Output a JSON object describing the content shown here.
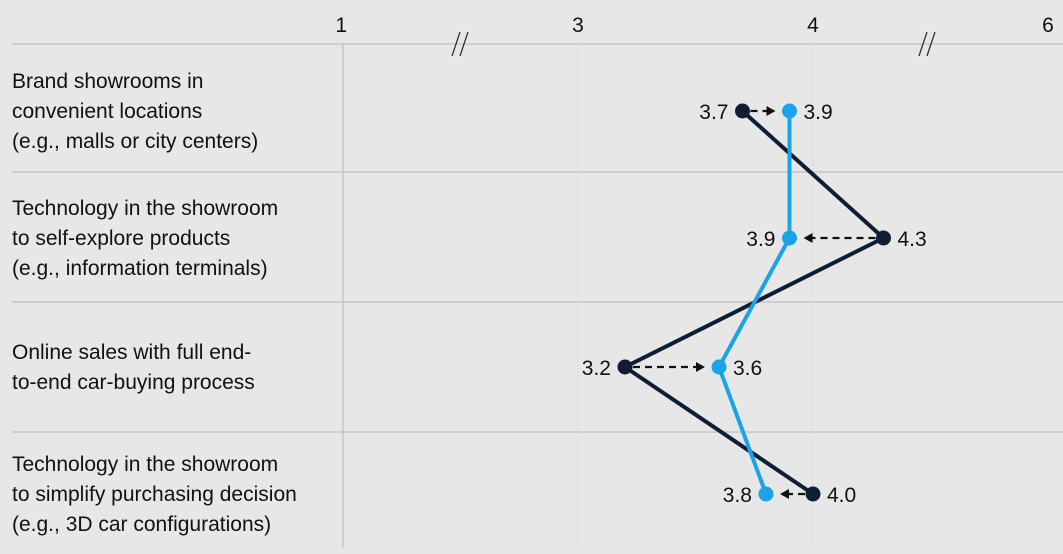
{
  "chart_data": {
    "type": "dot-arrow",
    "x_ticks": [
      "1",
      "3",
      "4",
      "6"
    ],
    "axis_breaks": [
      "between 1 and 3",
      "between 4 and 6"
    ],
    "grid": true,
    "categories": [
      {
        "lines": [
          "Brand showrooms in",
          "convenient locations",
          "(e.g., malls or city centers)"
        ]
      },
      {
        "lines": [
          "Technology in the showroom",
          "to self-explore products",
          "(e.g., information terminals)"
        ]
      },
      {
        "lines": [
          "Online sales with full end-",
          "to-end car-buying process"
        ]
      },
      {
        "lines": [
          "Technology in the showroom",
          "to simplify purchasing decision",
          "(e.g., 3D car configurations)"
        ]
      }
    ],
    "series": [
      {
        "color": "#0f1f33",
        "values": [
          3.7,
          4.3,
          3.2,
          4.0
        ],
        "labels": [
          "3.7",
          "4.3",
          "3.2",
          "4.0"
        ]
      },
      {
        "color": "#1aa3e8",
        "values": [
          3.9,
          3.9,
          3.6,
          3.8
        ],
        "labels": [
          "3.9",
          "3.9",
          "3.6",
          "3.8"
        ]
      }
    ]
  }
}
